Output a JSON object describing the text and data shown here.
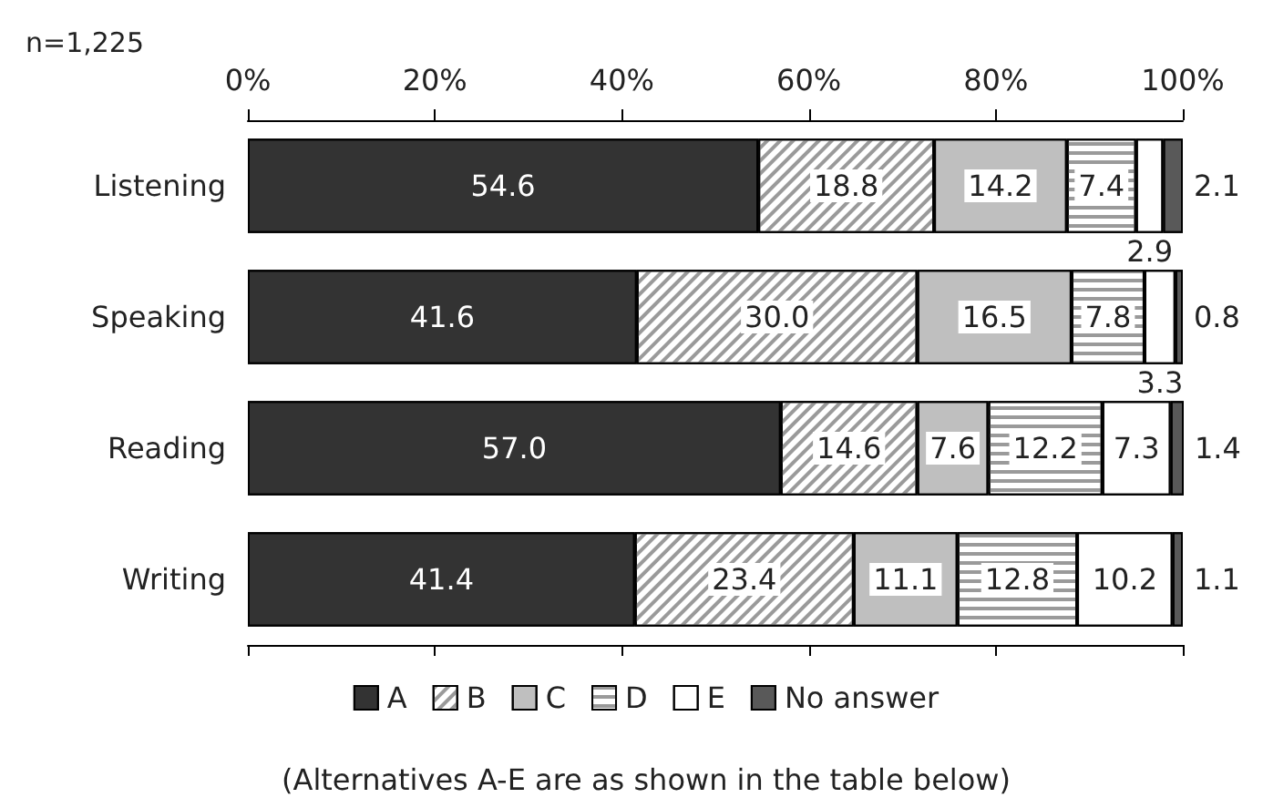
{
  "chart_data": {
    "type": "bar",
    "orientation": "horizontal",
    "stacked": true,
    "categories": [
      "Listening",
      "Speaking",
      "Reading",
      "Writing"
    ],
    "series": [
      {
        "name": "A",
        "color": "#333333",
        "values": [
          54.6,
          41.6,
          57.0,
          41.4
        ],
        "value_labels": [
          "54.6",
          "41.6",
          "57.0",
          "41.4"
        ]
      },
      {
        "name": "B",
        "color": "#ffffff",
        "values": [
          18.8,
          30.0,
          14.6,
          23.4
        ],
        "value_labels": [
          "18.8",
          "30.0",
          "14.6",
          "23.4"
        ]
      },
      {
        "name": "C",
        "color": "#bfbfbf",
        "values": [
          14.2,
          16.5,
          7.6,
          11.1
        ],
        "value_labels": [
          "14.2",
          "16.5",
          "7.6",
          "11.1"
        ]
      },
      {
        "name": "D",
        "color": "#ffffff",
        "values": [
          7.4,
          7.8,
          12.2,
          12.8
        ],
        "value_labels": [
          "7.4",
          "7.8",
          "12.2",
          "12.8"
        ]
      },
      {
        "name": "E",
        "color": "#ffffff",
        "values": [
          2.9,
          3.3,
          7.3,
          10.2
        ],
        "value_labels": [
          "2.9",
          "3.3",
          "7.3",
          "10.2"
        ]
      },
      {
        "name": "No answer",
        "color": "#595959",
        "values": [
          2.1,
          0.8,
          1.4,
          1.1
        ],
        "value_labels": [
          "2.1",
          "0.8",
          "1.4",
          "1.1"
        ]
      }
    ],
    "xlim": [
      0,
      100
    ],
    "xticks": [
      {
        "value": 0,
        "label": "0%"
      },
      {
        "value": 20,
        "label": "20%"
      },
      {
        "value": 40,
        "label": "40%"
      },
      {
        "value": 60,
        "label": "60%"
      },
      {
        "value": 80,
        "label": "80%"
      },
      {
        "value": 100,
        "label": "100%"
      }
    ],
    "legend": "bottom",
    "grid": false,
    "annotations": [
      "n=1,225",
      "(Alternatives A-E are as shown in the table below)"
    ]
  }
}
